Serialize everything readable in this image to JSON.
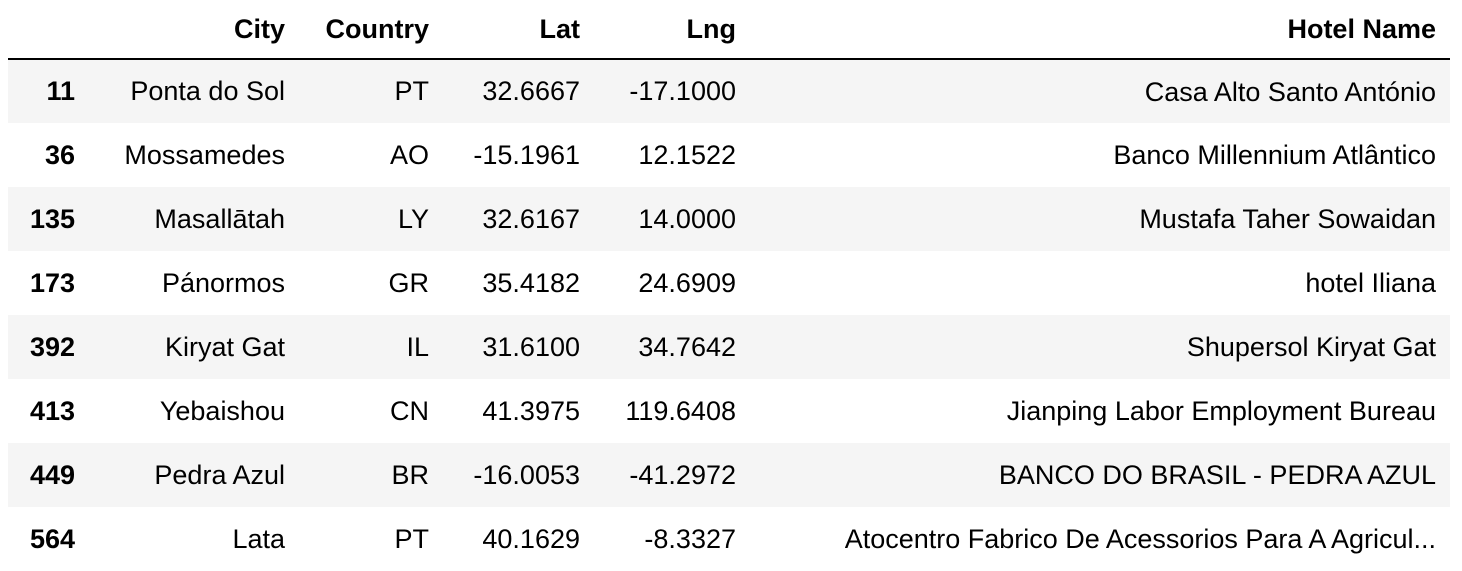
{
  "table": {
    "columns": [
      "",
      "City",
      "Country",
      "Lat",
      "Lng",
      "Hotel Name"
    ],
    "rows": [
      {
        "index": "11",
        "city": "Ponta do Sol",
        "country": "PT",
        "lat": "32.6667",
        "lng": "-17.1000",
        "hotel": "Casa Alto Santo António"
      },
      {
        "index": "36",
        "city": "Mossamedes",
        "country": "AO",
        "lat": "-15.1961",
        "lng": "12.1522",
        "hotel": "Banco Millennium Atlântico"
      },
      {
        "index": "135",
        "city": "Masallātah",
        "country": "LY",
        "lat": "32.6167",
        "lng": "14.0000",
        "hotel": "Mustafa Taher Sowaidan"
      },
      {
        "index": "173",
        "city": "Pánormos",
        "country": "GR",
        "lat": "35.4182",
        "lng": "24.6909",
        "hotel": "hotel Iliana"
      },
      {
        "index": "392",
        "city": "Kiryat Gat",
        "country": "IL",
        "lat": "31.6100",
        "lng": "34.7642",
        "hotel": "Shupersol Kiryat Gat"
      },
      {
        "index": "413",
        "city": "Yebaishou",
        "country": "CN",
        "lat": "41.3975",
        "lng": "119.6408",
        "hotel": "Jianping Labor Employment Bureau"
      },
      {
        "index": "449",
        "city": "Pedra Azul",
        "country": "BR",
        "lat": "-16.0053",
        "lng": "-41.2972",
        "hotel": "BANCO DO BRASIL - PEDRA AZUL"
      },
      {
        "index": "564",
        "city": "Lata",
        "country": "PT",
        "lat": "40.1629",
        "lng": "-8.3327",
        "hotel": "Atocentro Fabrico De Acessorios Para A Agricul..."
      }
    ]
  }
}
